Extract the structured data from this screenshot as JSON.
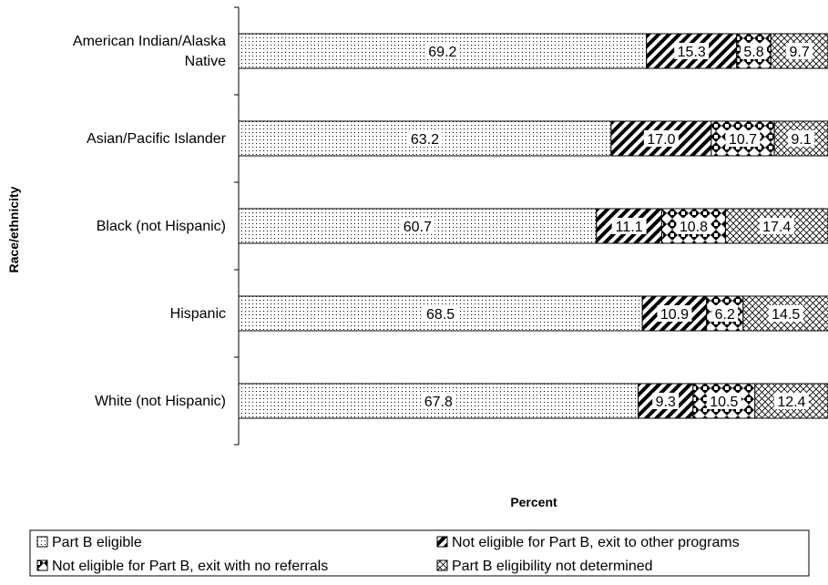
{
  "chart_data": {
    "type": "bar",
    "orientation": "horizontal",
    "stacked": true,
    "xlabel": "Percent",
    "ylabel": "Race/ethnicity",
    "xlim": [
      0,
      100
    ],
    "grid": false,
    "legend_position": "bottom",
    "categories": [
      [
        "American Indian/Alaska",
        "Native"
      ],
      [
        "Asian/Pacific Islander"
      ],
      [
        "Black (not Hispanic)"
      ],
      [
        "Hispanic"
      ],
      [
        "White (not Hispanic)"
      ]
    ],
    "series": [
      {
        "name": "Part B eligible",
        "pattern": "dots",
        "values": [
          69.2,
          63.2,
          60.7,
          68.5,
          67.8
        ]
      },
      {
        "name": "Not eligible for Part B, exit to other programs",
        "pattern": "diagonal-stripes",
        "values": [
          15.3,
          17.0,
          11.1,
          10.9,
          9.3
        ]
      },
      {
        "name": "Not eligible for Part B, exit with no referrals",
        "pattern": "diamonds",
        "values": [
          5.8,
          10.7,
          10.8,
          6.2,
          10.5
        ]
      },
      {
        "name": "Part B eligibility not determined",
        "pattern": "crosshatch",
        "values": [
          9.7,
          9.1,
          17.4,
          14.5,
          12.4
        ]
      }
    ],
    "value_labels": [
      [
        "69.2",
        "15.3",
        "5.8",
        "9.7"
      ],
      [
        "63.2",
        "17.0",
        "10.7",
        "9.1"
      ],
      [
        "60.7",
        "11.1",
        "10.8",
        "17.4"
      ],
      [
        "68.5",
        "10.9",
        "6.2",
        "14.5"
      ],
      [
        "67.8",
        "9.3",
        "10.5",
        "12.4"
      ]
    ],
    "colors": {
      "stroke": "#000000",
      "background": "#ffffff"
    }
  }
}
